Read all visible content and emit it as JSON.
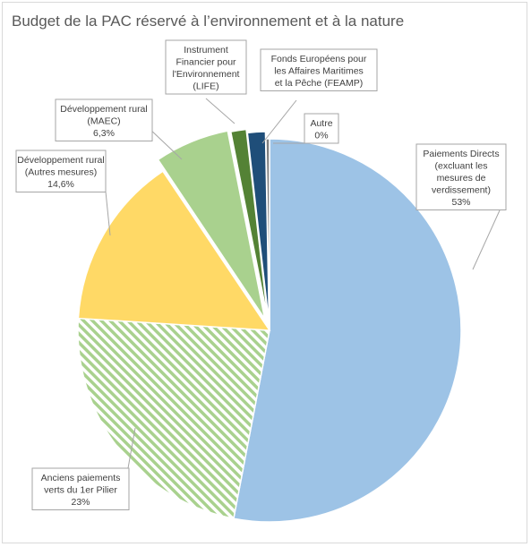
{
  "chart_data": {
    "type": "pie",
    "title": "Budget de la PAC réservé à l’environnement et à la nature",
    "slices": [
      {
        "label": [
          "Paiements Directs",
          "(excluant les",
          "mesures de",
          "verdissement)"
        ],
        "pct_text": "53%",
        "value": 53,
        "color": "#9dc3e6",
        "pattern": "none"
      },
      {
        "label": [
          "Anciens paiements",
          "verts du 1er Pilier"
        ],
        "pct_text": "23%",
        "value": 23,
        "color": "#a9d18e",
        "pattern": "hatch"
      },
      {
        "label": [
          "Développement rural",
          "(Autres mesures)"
        ],
        "pct_text": "14,6%",
        "value": 14.6,
        "color": "#ffd966",
        "pattern": "none"
      },
      {
        "label": [
          "Développement rural",
          "(MAEC)"
        ],
        "pct_text": "6,3%",
        "value": 6.3,
        "color": "#a9d18e",
        "pattern": "none"
      },
      {
        "label": [
          "Instrument",
          "Financier pour",
          "l'Environnement",
          "(LIFE)"
        ],
        "pct_text": "",
        "value": 1.3,
        "color": "#548235",
        "pattern": "none"
      },
      {
        "label": [
          "Fonds Européens pour",
          "les Affaires Maritimes",
          "et la Pêche (FEAMP)"
        ],
        "pct_text": "",
        "value": 1.5,
        "color": "#1f4e79",
        "pattern": "none"
      },
      {
        "label": [
          "Autre"
        ],
        "pct_text": "0%",
        "value": 0.3,
        "color": "#7f7f7f",
        "pattern": "none"
      }
    ]
  }
}
